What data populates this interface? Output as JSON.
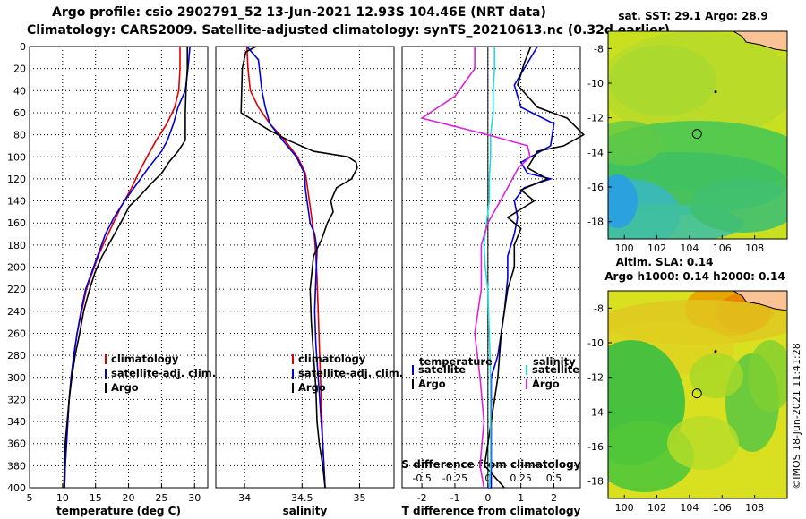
{
  "header": {
    "line1": "Argo profile: csio 2902791_52 13-Jun-2021 12.93S 104.46E (NRT data)",
    "line2": "Climatology: CARS2009. Satellite-adjusted climatology: synTS_20210613.nc (0.32d earlier)"
  },
  "colors": {
    "climatology": "#e00000",
    "satellite": "#0000dd",
    "argo": "#000000",
    "sat_salinity": "#22dddd",
    "argo_salinity": "#dd22dd"
  },
  "depth_axis": {
    "ticks": [
      0,
      20,
      40,
      60,
      80,
      100,
      120,
      140,
      160,
      180,
      200,
      220,
      240,
      260,
      280,
      300,
      320,
      340,
      360,
      380,
      400
    ],
    "range": [
      0,
      400
    ]
  },
  "chart_data": [
    {
      "type": "line",
      "xlabel": "temperature (deg C)",
      "ylabel": "depth",
      "xlim": [
        5,
        32
      ],
      "ylim": [
        400,
        0
      ],
      "xticks": [
        5,
        10,
        15,
        20,
        25,
        30
      ],
      "legend": [
        "climatology",
        "satellite-adj. clim.",
        "Argo"
      ],
      "series": [
        {
          "name": "climatology",
          "color_key": "climatology",
          "x": [
            27.8,
            27.8,
            27.6,
            27.0,
            25.8,
            24.2,
            22.8,
            21.5,
            20.3,
            18.9,
            17.7,
            16.5,
            15.4,
            14.5,
            13.6,
            12.9,
            12.2,
            11.7,
            11.3,
            11.0,
            10.8,
            10.6,
            10.4,
            10.3
          ],
          "y": [
            0,
            20,
            40,
            55,
            70,
            85,
            100,
            115,
            130,
            145,
            160,
            175,
            190,
            205,
            220,
            240,
            260,
            280,
            300,
            320,
            340,
            360,
            380,
            400
          ]
        },
        {
          "name": "satellite-adj. clim.",
          "color_key": "satellite",
          "x": [
            29.3,
            29.0,
            28.6,
            27.5,
            26.8,
            25.9,
            25.0,
            23.0,
            21.2,
            19.4,
            17.8,
            16.5,
            15.3,
            14.4,
            13.5,
            12.8,
            12.2,
            11.7,
            11.3,
            11.0,
            10.8,
            10.6,
            10.4,
            10.3
          ],
          "y": [
            0,
            20,
            40,
            55,
            70,
            85,
            95,
            110,
            125,
            140,
            155,
            170,
            190,
            205,
            220,
            240,
            260,
            280,
            300,
            320,
            340,
            360,
            380,
            400
          ]
        },
        {
          "name": "Argo",
          "color_key": "argo",
          "x": [
            28.9,
            28.9,
            28.7,
            28.6,
            28.6,
            28.6,
            27.5,
            26.1,
            25.0,
            23.3,
            21.8,
            20.1,
            18.8,
            17.4,
            16.0,
            14.9,
            14.1,
            13.2,
            12.6,
            11.9,
            11.4,
            11.0,
            10.7,
            10.4,
            10.2
          ],
          "y": [
            0,
            20,
            40,
            60,
            75,
            85,
            95,
            105,
            115,
            125,
            135,
            145,
            160,
            175,
            190,
            205,
            220,
            240,
            260,
            280,
            300,
            320,
            340,
            360,
            400
          ]
        }
      ]
    },
    {
      "type": "line",
      "xlabel": "salinity",
      "ylabel": "depth",
      "xlim": [
        33.75,
        35.3
      ],
      "ylim": [
        400,
        0
      ],
      "xticks": [
        34,
        34.5,
        35
      ],
      "xticklabels": [
        "34",
        "34.5",
        "35"
      ],
      "legend": [
        "climatology",
        "satellite-adj. clim.",
        "Argo"
      ],
      "series": [
        {
          "name": "climatology",
          "color_key": "climatology",
          "x": [
            34.02,
            34.03,
            34.05,
            34.12,
            34.22,
            34.35,
            34.46,
            34.53,
            34.55,
            34.57,
            34.59,
            34.61,
            34.62,
            34.63,
            34.64,
            34.65,
            34.66,
            34.67,
            34.68,
            34.69,
            34.7
          ],
          "y": [
            0,
            20,
            40,
            55,
            70,
            85,
            100,
            115,
            130,
            145,
            160,
            175,
            190,
            210,
            240,
            270,
            300,
            330,
            360,
            380,
            400
          ]
        },
        {
          "name": "satellite-adj. clim.",
          "color_key": "satellite",
          "x": [
            34.02,
            34.12,
            34.15,
            34.18,
            34.22,
            34.33,
            34.45,
            34.52,
            34.53,
            34.55,
            34.57,
            34.61,
            34.63,
            34.62,
            34.61,
            34.62,
            34.64,
            34.66,
            34.68,
            34.69,
            34.7
          ],
          "y": [
            0,
            12,
            40,
            55,
            70,
            85,
            100,
            115,
            130,
            145,
            160,
            170,
            185,
            210,
            240,
            270,
            300,
            330,
            360,
            380,
            400
          ]
        },
        {
          "name": "Argo",
          "color_key": "argo",
          "x": [
            34.1,
            34.01,
            33.98,
            33.97,
            34.2,
            34.38,
            34.6,
            34.9,
            34.97,
            34.98,
            34.93,
            34.8,
            34.75,
            34.77,
            34.72,
            34.67,
            34.6,
            34.57,
            34.58,
            34.6,
            34.62,
            34.63,
            34.65,
            34.68,
            34.7
          ],
          "y": [
            0,
            5,
            20,
            60,
            75,
            85,
            95,
            100,
            105,
            110,
            120,
            128,
            140,
            150,
            160,
            175,
            190,
            220,
            250,
            280,
            310,
            340,
            360,
            380,
            400
          ]
        }
      ]
    },
    {
      "type": "line",
      "xlabel": "T difference from climatology",
      "ylabel": "depth",
      "xlim": [
        -2.6,
        2.8
      ],
      "ylim": [
        400,
        0
      ],
      "xticks": [
        -2,
        -1,
        0,
        1,
        2
      ],
      "secondary_xlabel": "S difference from climatology",
      "secondary_xlim": [
        -0.65,
        0.7
      ],
      "secondary_xticks": [
        -0.5,
        -0.25,
        0,
        0.25,
        0.5
      ],
      "secondary_xticklabels": [
        "-0.5",
        "-0.25",
        "0",
        "0.25",
        "0.5"
      ],
      "legend_left": {
        "title": "temperature",
        "entries": [
          "satellite",
          "Argo"
        ]
      },
      "legend_right": {
        "title": "salinity",
        "entries": [
          "satellite",
          "Argo"
        ]
      },
      "series": [
        {
          "name": "T satellite",
          "color_key": "satellite",
          "axis": "T",
          "x": [
            1.5,
            1.2,
            0.8,
            1.0,
            2.0,
            1.9,
            1.3,
            1.0,
            1.2,
            1.9,
            1.1,
            0.8,
            0.9,
            0.8,
            0.6,
            0.6,
            0.5,
            0.4,
            0.3,
            0.1,
            0.1,
            0.1,
            0.1,
            0.1,
            0.0
          ],
          "y": [
            0,
            15,
            35,
            55,
            70,
            90,
            100,
            105,
            115,
            120,
            128,
            140,
            155,
            170,
            190,
            210,
            240,
            260,
            280,
            300,
            330,
            360,
            380,
            400,
            400
          ]
        },
        {
          "name": "T Argo",
          "color_key": "argo",
          "axis": "T",
          "x": [
            1.3,
            1.1,
            0.9,
            1.5,
            2.4,
            2.9,
            2.3,
            1.5,
            1.2,
            1.8,
            1.0,
            1.4,
            0.6,
            1.0,
            0.8,
            0.8,
            0.6,
            0.4,
            0.3,
            0.1,
            -0.1,
            0.2,
            0.5
          ],
          "y": [
            0,
            15,
            35,
            55,
            65,
            80,
            90,
            95,
            110,
            120,
            130,
            140,
            155,
            165,
            180,
            200,
            220,
            260,
            300,
            340,
            380,
            390,
            400
          ]
        },
        {
          "name": "S satellite",
          "color_key": "sat_salinity",
          "axis": "S",
          "x": [
            0.05,
            0.05,
            0.04,
            0.04,
            0.02,
            0.02,
            0.01,
            0.01,
            -0.01,
            -0.03,
            -0.02,
            0.0,
            0.01,
            0.02,
            0.02,
            0.02,
            0.01
          ],
          "y": [
            0,
            20,
            40,
            60,
            80,
            100,
            120,
            140,
            160,
            180,
            200,
            220,
            260,
            300,
            340,
            380,
            400
          ]
        },
        {
          "name": "S Argo",
          "color_key": "argo_salinity",
          "axis": "S",
          "x": [
            -0.1,
            -0.1,
            -0.25,
            -0.5,
            0.0,
            0.3,
            0.32,
            0.23,
            0.14,
            0.0,
            -0.05,
            -0.05,
            -0.1,
            -0.06,
            -0.03,
            -0.06,
            -0.03
          ],
          "y": [
            0,
            20,
            45,
            65,
            80,
            90,
            100,
            110,
            130,
            160,
            180,
            220,
            260,
            300,
            340,
            380,
            400
          ]
        }
      ]
    },
    {
      "type": "heatmap",
      "title": "sat. SST: 29.1  Argo: 28.9",
      "xlim": [
        99,
        110
      ],
      "ylim": [
        -19,
        -7
      ],
      "xticks": [
        100,
        102,
        104,
        106,
        108
      ],
      "yticks": [
        -8,
        -10,
        -12,
        -14,
        -16,
        -18
      ],
      "argo_position": {
        "lon": 104.46,
        "lat": -12.93
      }
    },
    {
      "type": "heatmap",
      "title": "Altim. SLA: 0.14",
      "subtitle": "Argo h1000: 0.14 h2000: 0.14",
      "xlim": [
        99,
        110
      ],
      "ylim": [
        -19,
        -7
      ],
      "xticks": [
        100,
        102,
        104,
        106,
        108
      ],
      "yticks": [
        -8,
        -10,
        -12,
        -14,
        -16,
        -18
      ],
      "argo_position": {
        "lon": 104.46,
        "lat": -12.93
      }
    }
  ],
  "credit": "©IMOS 18-Jun-2021 11:41:28"
}
